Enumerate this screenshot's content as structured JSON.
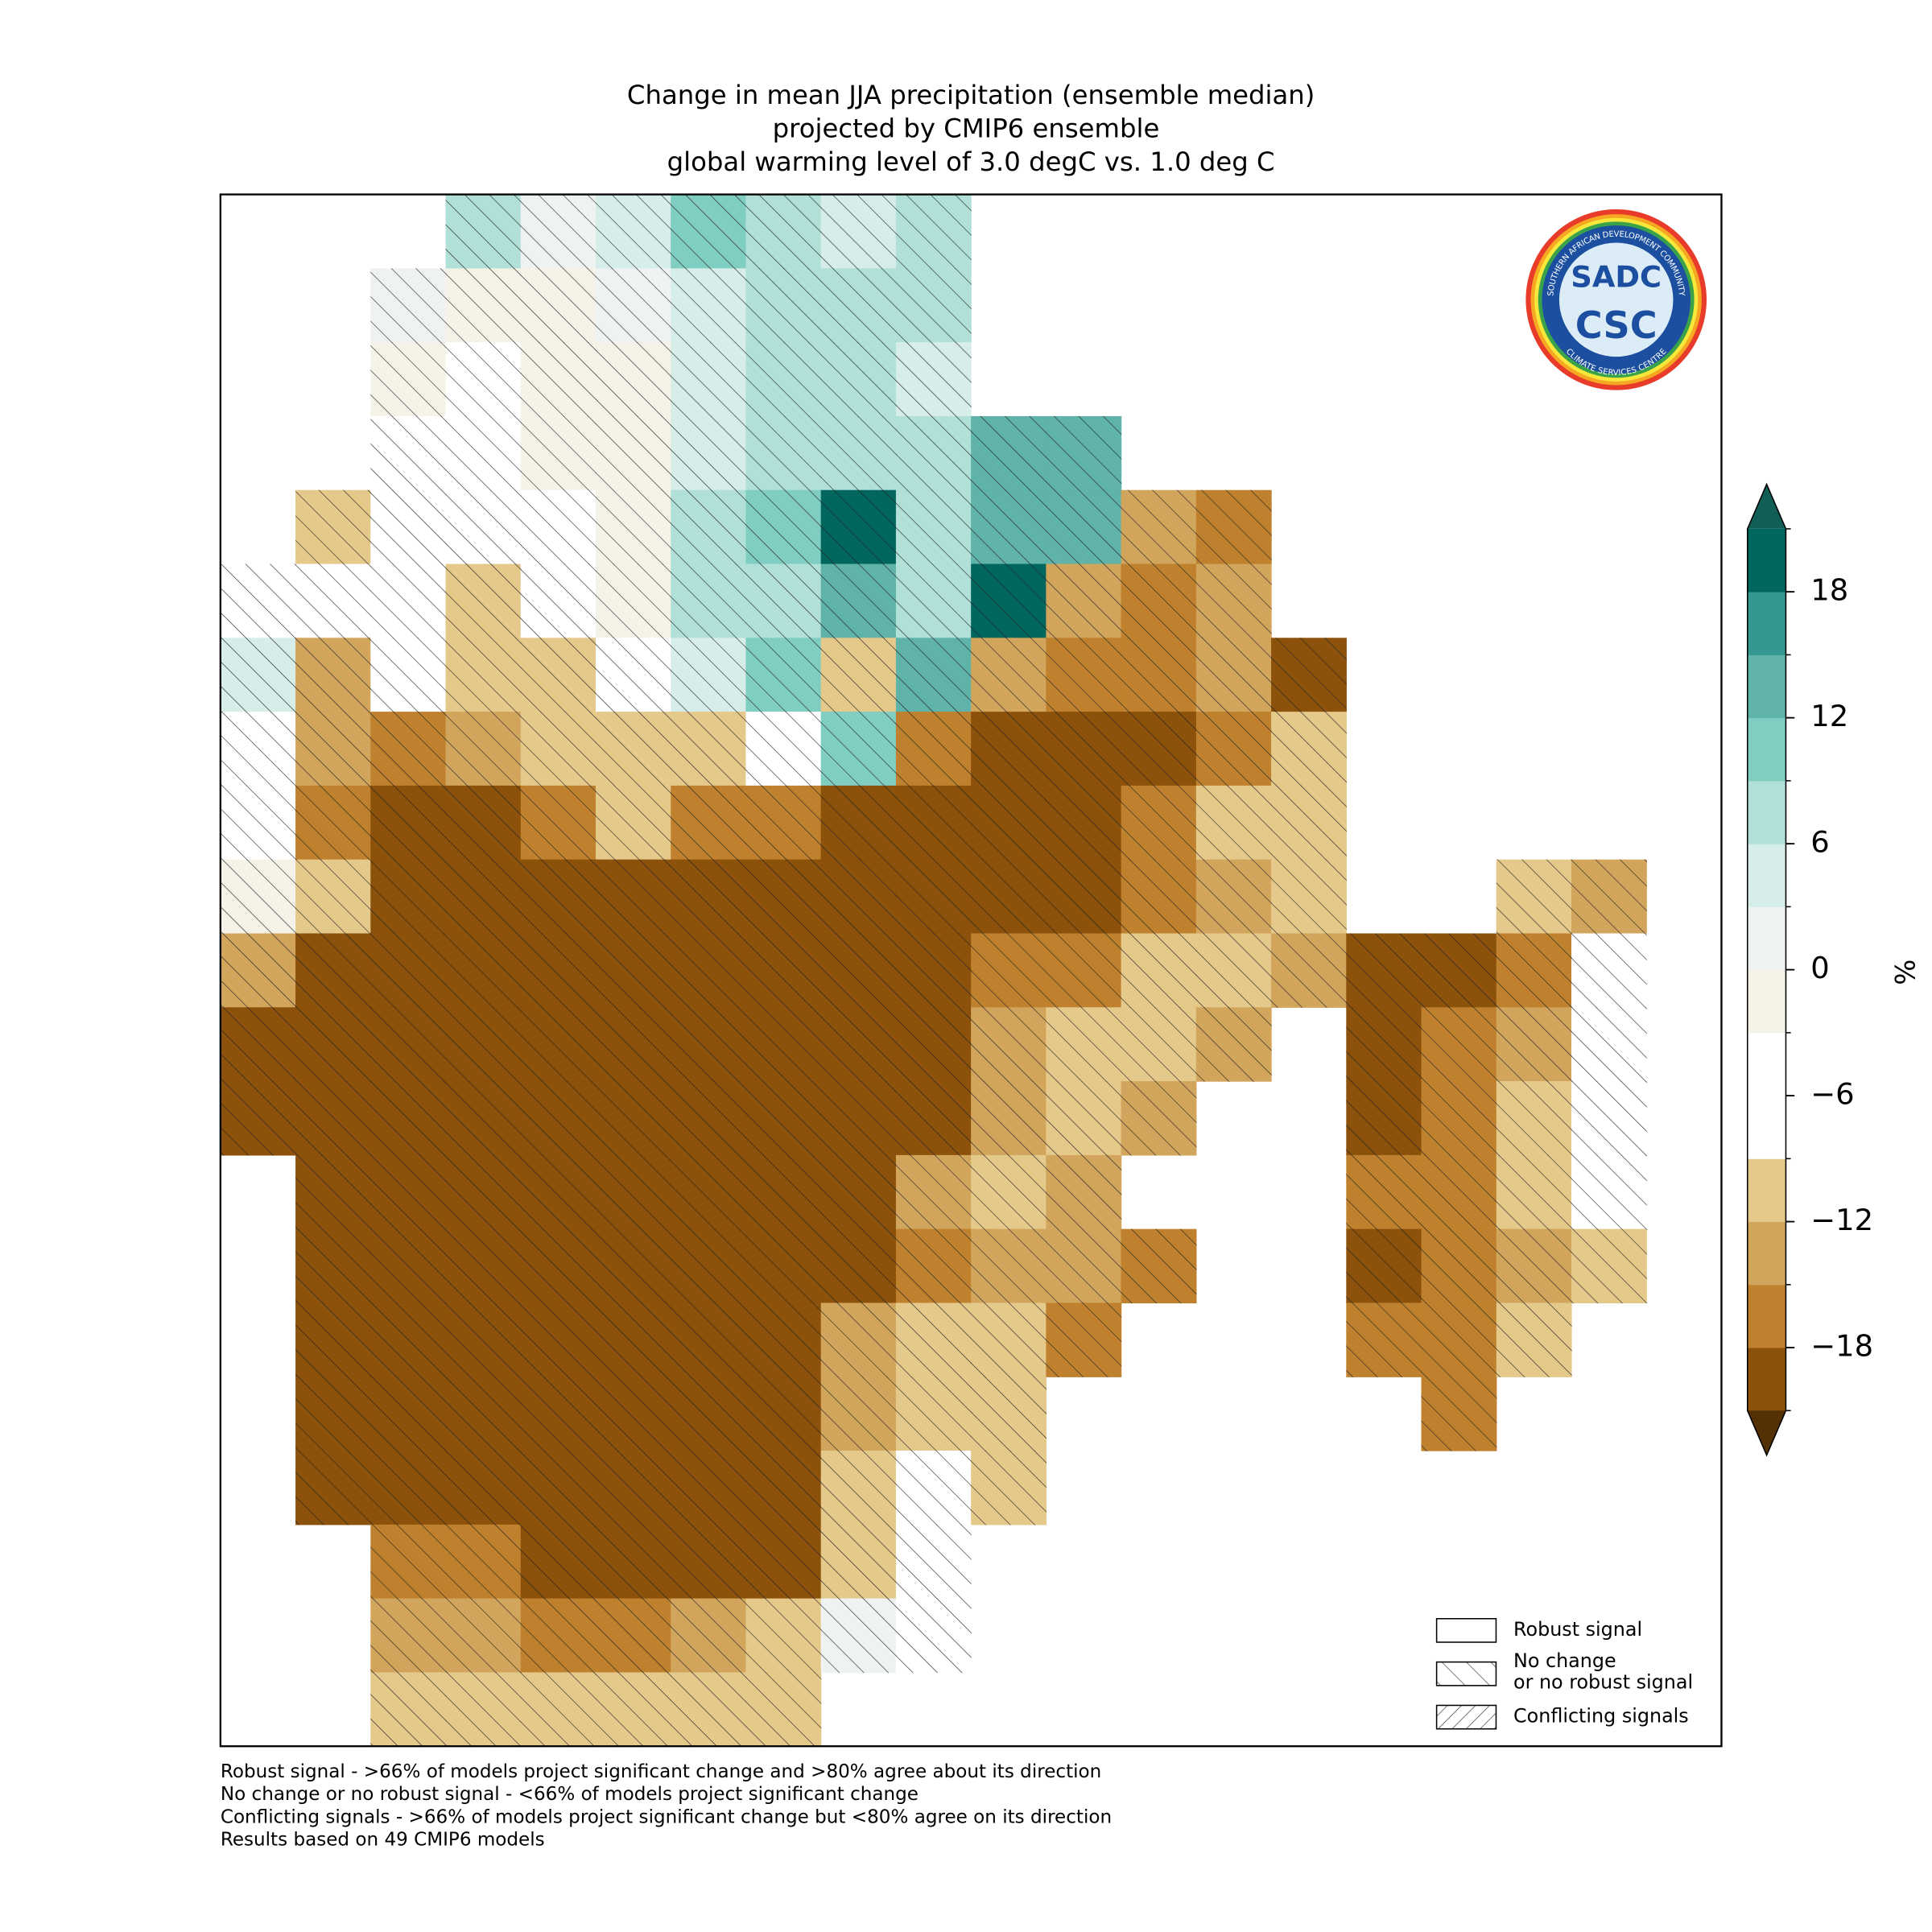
{
  "header": {
    "title": [
      "Change in mean JJA precipitation (ensemble median)",
      "projected by CMIP6 ensemble",
      "global warming level of 3.0 degC vs. 1.0 deg C"
    ]
  },
  "map": {
    "type": "grid",
    "values": [
      [
        null,
        null,
        null,
        6,
        0,
        4,
        10,
        8,
        4,
        6,
        null,
        null,
        null,
        null,
        null,
        null,
        null,
        null,
        null,
        null
      ],
      [
        null,
        null,
        2,
        -3,
        -3,
        2,
        4,
        6,
        8,
        8,
        null,
        null,
        null,
        null,
        null,
        null,
        null,
        null,
        null,
        null
      ],
      [
        null,
        null,
        -3,
        -4,
        -3,
        -2,
        3,
        6,
        6,
        3,
        null,
        null,
        null,
        null,
        null,
        null,
        null,
        null,
        null,
        null
      ],
      [
        null,
        null,
        -4,
        -4,
        -3,
        -3,
        4,
        8,
        6,
        8,
        14,
        14,
        null,
        null,
        null,
        null,
        null,
        null,
        null,
        null
      ],
      [
        null,
        -10,
        -5,
        -4,
        -4,
        -2,
        6,
        10,
        18,
        6,
        14,
        14,
        -14,
        -18,
        null,
        null,
        null,
        null,
        null,
        null
      ],
      [
        -4,
        -5,
        -4,
        -12,
        -4,
        -3,
        6,
        8,
        12,
        8,
        20,
        -14,
        -18,
        -14,
        null,
        null,
        null,
        null,
        null,
        null
      ],
      [
        3,
        -15,
        -8,
        -12,
        -10,
        -5,
        4,
        10,
        -12,
        12,
        -14,
        -18,
        -18,
        -14,
        -20,
        null,
        null,
        null,
        null,
        null
      ],
      [
        -5,
        -14,
        -16,
        -14,
        -10,
        -10,
        -12,
        -8,
        10,
        -16,
        -20,
        -20,
        -20,
        -16,
        -10,
        null,
        null,
        null,
        null,
        null
      ],
      [
        -5,
        -16,
        -20,
        -20,
        -16,
        -12,
        -18,
        -16,
        -20,
        -20,
        -20,
        -20,
        -18,
        -12,
        -11,
        null,
        null,
        null,
        null,
        null
      ],
      [
        -3,
        -10,
        -20,
        -20,
        -20,
        -20,
        -20,
        -20,
        -20,
        -20,
        -20,
        -20,
        -18,
        -13,
        -12,
        null,
        null,
        -11,
        -14,
        null
      ],
      [
        -15,
        -20,
        -20,
        -20,
        -20,
        -20,
        -20,
        -20,
        -20,
        -20,
        -18,
        -16,
        -12,
        -12,
        -14,
        -20,
        -20,
        -16,
        -4,
        null
      ],
      [
        -20,
        -20,
        -20,
        -20,
        -20,
        -20,
        -20,
        -20,
        -20,
        -20,
        -14,
        -12,
        -11,
        -14,
        null,
        -20,
        -18,
        -14,
        -4,
        null
      ],
      [
        -20,
        -20,
        -20,
        -20,
        -20,
        -20,
        -20,
        -20,
        -20,
        -20,
        -14,
        -12,
        -14,
        null,
        null,
        -20,
        -18,
        -12,
        -4,
        null
      ],
      [
        null,
        -20,
        -20,
        -20,
        -20,
        -20,
        -20,
        -20,
        -20,
        -14,
        -12,
        -14,
        null,
        null,
        null,
        -18,
        -18,
        -12,
        -6,
        null
      ],
      [
        null,
        -20,
        -20,
        -20,
        -20,
        -20,
        -20,
        -20,
        -20,
        -16,
        -13,
        -15,
        -16,
        null,
        null,
        -20,
        -18,
        -14,
        -12,
        null
      ],
      [
        null,
        -20,
        -20,
        -20,
        -20,
        -20,
        -20,
        -20,
        -14,
        -12,
        -12,
        -16,
        null,
        null,
        null,
        -16,
        -16,
        -12,
        null,
        null
      ],
      [
        null,
        -20,
        -20,
        -20,
        -20,
        -20,
        -20,
        -20,
        -14,
        -10,
        -12,
        null,
        null,
        null,
        null,
        null,
        -16,
        null,
        null,
        null
      ],
      [
        null,
        -20,
        -20,
        -20,
        -20,
        -20,
        -20,
        -20,
        -12,
        -6,
        -12,
        null,
        null,
        null,
        null,
        null,
        null,
        null,
        null,
        null
      ],
      [
        null,
        null,
        -16,
        -18,
        -20,
        -20,
        -20,
        -20,
        -12,
        -4,
        null,
        null,
        null,
        null,
        null,
        null,
        null,
        null,
        null,
        null
      ],
      [
        null,
        null,
        -14,
        -14,
        -18,
        -18,
        -14,
        -10,
        2,
        -4,
        null,
        null,
        null,
        null,
        null,
        null,
        null,
        null,
        null,
        null
      ],
      [
        null,
        null,
        -12,
        -12,
        -12,
        -12,
        -10,
        -12,
        null,
        null,
        null,
        null,
        null,
        null,
        null,
        null,
        null,
        null,
        null,
        null
      ]
    ]
  },
  "colorbar": {
    "label": "%",
    "bounds": [
      -21,
      -18,
      -15,
      -12,
      -9,
      -6,
      -3,
      0,
      3,
      6,
      9,
      12,
      15,
      18,
      21
    ],
    "colors": [
      "#8c510a",
      "#bf812d",
      "#d2a55c",
      "#e5c98a",
      "#ffffff",
      "#ffffff",
      "#f5f2e8",
      "#eef3f1",
      "#d6ede9",
      "#b0e0d8",
      "#80cdc1",
      "#5fb3a8",
      "#35978f",
      "#01665e"
    ],
    "under_color": "#543005",
    "over_color": "#115e57",
    "ticks": [
      {
        "value": -18,
        "label": "−18"
      },
      {
        "value": -12,
        "label": "−12"
      },
      {
        "value": -6,
        "label": "−6"
      },
      0,
      6,
      12,
      18
    ]
  },
  "legend": {
    "entries": [
      [
        "Robust signal"
      ],
      [
        "No change",
        "or no robust signal"
      ],
      [
        "Conflicting signals"
      ]
    ]
  },
  "logo": {
    "ring_top": "SOUTHERN AFRICAN DEVELOPMENT COMMUNITY",
    "ring_bottom": "CLIMATE SERVICES CENTRE",
    "top": "SADC",
    "bottom": "CSC"
  },
  "footnotes": [
    "Robust signal - >66% of models project significant change and >80% agree about its direction",
    "No change or no robust signal - <66% of models project significant change",
    "Conflicting signals - >66% of models project significant change but <80% agree on its direction",
    "Results based on 49 CMIP6 models"
  ]
}
